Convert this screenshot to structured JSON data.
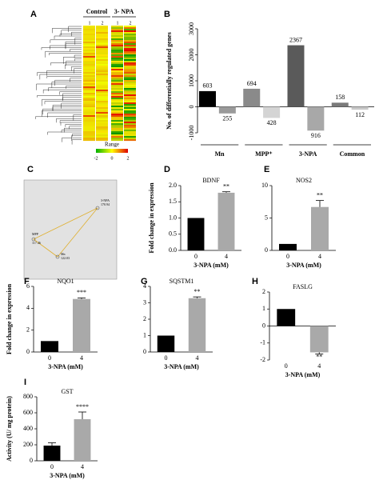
{
  "heatmap": {
    "panel": "A",
    "groups": [
      "Control",
      "3- NPA"
    ],
    "columns": [
      "1",
      "2",
      "1",
      "2"
    ],
    "legend_title": "Range",
    "legend_ticks": [
      -2,
      0,
      2
    ]
  },
  "network": {
    "panel": "C",
    "nodes": [
      {
        "label": "3-NPA",
        "score": 170.94
      },
      {
        "label": "MPP",
        "score": 117.46
      },
      {
        "label": "Mn",
        "score": 122.03
      }
    ]
  },
  "chart_data": [
    {
      "type": "bar",
      "panel": "B",
      "ylabel": "No. of differentially regulated genes",
      "categories": [
        "Mn",
        "MPP⁺",
        "3-NPA",
        "Common"
      ],
      "series": [
        {
          "values": [
            603,
            694,
            2367,
            158
          ],
          "colors": [
            "#000000",
            "#8a8a8a",
            "#5a5a5a",
            "#7a7a7a"
          ]
        },
        {
          "values": [
            -255,
            -428,
            -916,
            -112
          ],
          "value_labels": [
            "255",
            "428",
            "916",
            "112"
          ],
          "colors": [
            "#9a9a9a",
            "#d4d4d4",
            "#a8a8a8",
            "#c8c8c8"
          ]
        }
      ],
      "ylim": [
        -1000,
        3000
      ],
      "yticks": [
        -1000,
        0,
        1000,
        2000,
        3000
      ]
    },
    {
      "type": "bar",
      "panel": "D",
      "title": "BDNF",
      "ylabel": "Fold change in expression",
      "xlabel": "3-NPA (mM)",
      "categories": [
        "0",
        "4"
      ],
      "values": [
        1,
        1.78
      ],
      "errors": [
        null,
        0.03
      ],
      "annotation": "**",
      "colors": [
        "#000000",
        "#a9a9a9"
      ],
      "ylim": [
        0,
        2
      ],
      "yticks": [
        {
          "value": 0,
          "label": "0.0"
        },
        {
          "value": 0.5,
          "label": "0.5"
        },
        {
          "value": 1,
          "label": "1.0"
        },
        {
          "value": 1.5,
          "label": "1.5"
        },
        {
          "value": 2,
          "label": "2.0"
        }
      ]
    },
    {
      "type": "bar",
      "panel": "E",
      "title": "NOS2",
      "xlabel": "3-NPA (mM)",
      "categories": [
        "0",
        "4"
      ],
      "values": [
        1,
        6.7
      ],
      "errors": [
        null,
        1.0
      ],
      "annotation": "**",
      "colors": [
        "#000000",
        "#a9a9a9"
      ],
      "ylim": [
        0,
        10
      ],
      "yticks": [
        0,
        5,
        10
      ]
    },
    {
      "type": "bar",
      "panel": "F",
      "title": "NQO1",
      "ylabel": "Fold change in expression",
      "xlabel": "3-NPA (mM)",
      "categories": [
        "0",
        "4"
      ],
      "values": [
        1,
        4.85
      ],
      "errors": [
        null,
        0.1
      ],
      "annotation": "***",
      "colors": [
        "#000000",
        "#a9a9a9"
      ],
      "ylim": [
        0,
        6
      ],
      "yticks": [
        0,
        2,
        4,
        6
      ]
    },
    {
      "type": "bar",
      "panel": "G",
      "title": "SQSTM1",
      "xlabel": "3-NPA (mM)",
      "categories": [
        "0",
        "4"
      ],
      "values": [
        1,
        3.28
      ],
      "errors": [
        null,
        0.08
      ],
      "annotation": "**",
      "colors": [
        "#000000",
        "#a9a9a9"
      ],
      "ylim": [
        0,
        4
      ],
      "yticks": [
        0,
        1,
        2,
        3,
        4
      ]
    },
    {
      "type": "bar",
      "panel": "H",
      "title": "FASLG",
      "xlabel": "3-NPA (mM)",
      "categories": [
        "0",
        "4"
      ],
      "values": [
        1,
        -1.55
      ],
      "errors": [
        null,
        0.1
      ],
      "annotation": "**",
      "colors": [
        "#000000",
        "#a9a9a9"
      ],
      "ylim": [
        -2,
        2
      ],
      "yticks": [
        -2,
        -1,
        0,
        1,
        2
      ]
    },
    {
      "type": "bar",
      "panel": "I",
      "title": "GST",
      "ylabel": "Activity (U/ mg protein)",
      "xlabel": "3-NPA (mM)",
      "categories": [
        "0",
        "4"
      ],
      "values": [
        190,
        520
      ],
      "errors": [
        35,
        90
      ],
      "annotation": "****",
      "colors": [
        "#000000",
        "#a9a9a9"
      ],
      "ylim": [
        0,
        800
      ],
      "yticks": [
        0,
        200,
        400,
        600,
        800
      ]
    }
  ]
}
